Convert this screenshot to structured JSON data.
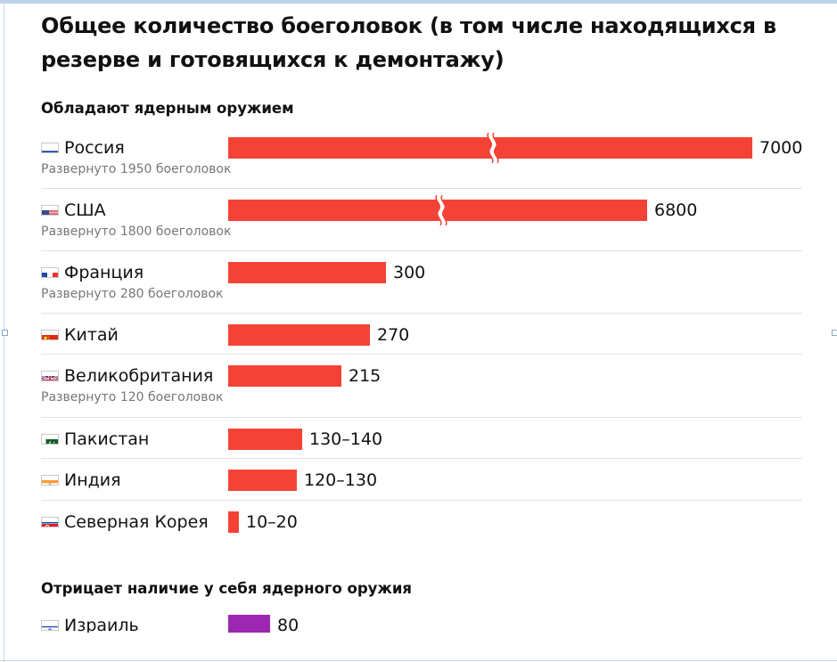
{
  "title": "Общее количество боеголовок (в том числе находящихся в резерве и готовящихся к демонтажу)",
  "sections": [
    {
      "label": "Обладают ядерным оружием"
    },
    {
      "label": "Отрицает наличие у себя ядерного оружия"
    }
  ],
  "chart_data": {
    "type": "bar",
    "orientation": "horizontal",
    "title": "Общее количество боеголовок (в том числе находящихся в резерве и готовящихся к демонтажу)",
    "axis_break": true,
    "categories": [
      "Россия",
      "США",
      "Франция",
      "Китай",
      "Великобритания",
      "Пакистан",
      "Индия",
      "Северная Корея",
      "Израиль"
    ],
    "rows": [
      {
        "name": "Россия",
        "flag": "russia-flag",
        "value": 7000,
        "label": "7000",
        "deployed": "Развернуто 1950 боеголовок",
        "color": "#f44336",
        "broken": true
      },
      {
        "name": "США",
        "flag": "usa-flag",
        "value": 6800,
        "label": "6800",
        "deployed": "Развернуто 1800 боеголовок",
        "color": "#f44336",
        "broken": true
      },
      {
        "name": "Франция",
        "flag": "france-flag",
        "value": 300,
        "label": "300",
        "deployed": "Развернуто 280 боеголовок",
        "color": "#f44336"
      },
      {
        "name": "Китай",
        "flag": "china-flag",
        "value": 270,
        "label": "270",
        "color": "#f44336"
      },
      {
        "name": "Великобритания",
        "flag": "uk-flag",
        "value": 215,
        "label": "215",
        "deployed": "Развернуто 120 боеголовок",
        "color": "#f44336"
      },
      {
        "name": "Пакистан",
        "flag": "pakistan-flag",
        "value": [
          130,
          140
        ],
        "label": "130–140",
        "color": "#f44336"
      },
      {
        "name": "Индия",
        "flag": "india-flag",
        "value": [
          120,
          130
        ],
        "label": "120–130",
        "color": "#f44336"
      },
      {
        "name": "Северная Корея",
        "flag": "north-korea-flag",
        "value": [
          10,
          20
        ],
        "label": "10–20",
        "color": "#f44336"
      },
      {
        "name": "Израиль",
        "flag": "israel-flag",
        "value": 80,
        "label": "80",
        "color": "#9c27b0"
      }
    ]
  }
}
